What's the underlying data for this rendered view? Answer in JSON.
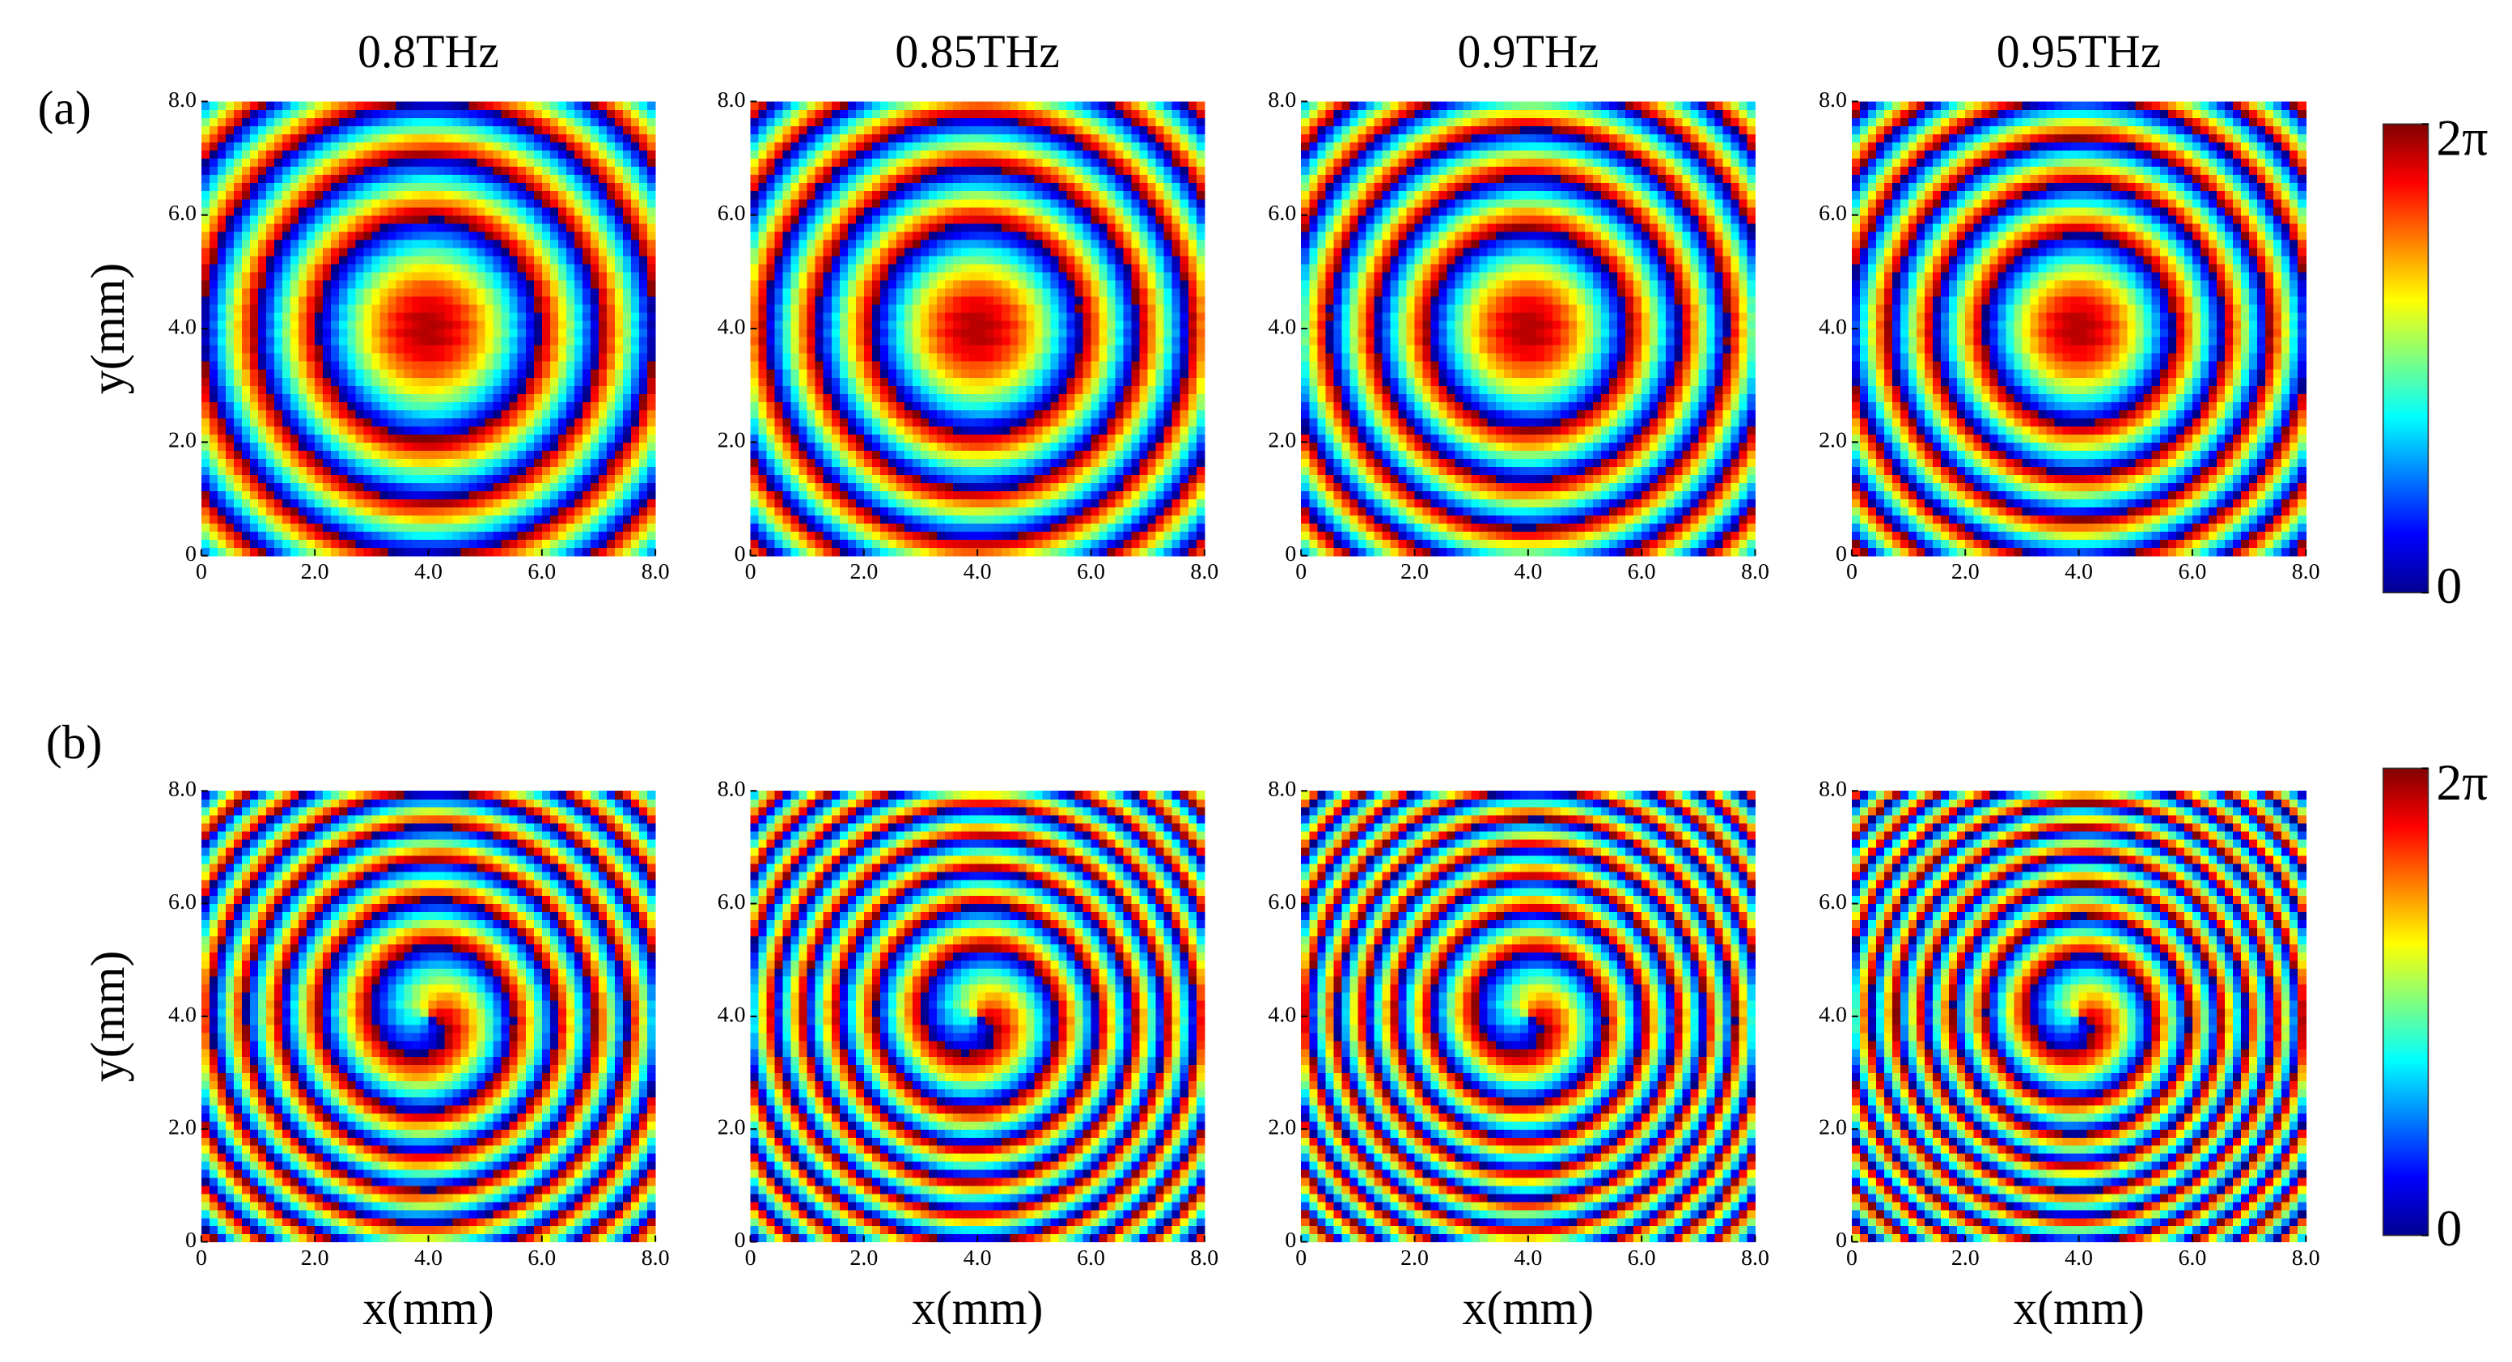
{
  "panel_labels": [
    "(a)",
    "(b)"
  ],
  "colorbars": [
    {
      "lim": [
        0,
        6.283
      ],
      "ticks": [
        {
          "value": 0,
          "label": "0"
        },
        {
          "value": 6.283,
          "label": "2π"
        }
      ]
    },
    {
      "lim": [
        0,
        6.283
      ],
      "ticks": [
        {
          "value": 0,
          "label": "0"
        },
        {
          "value": 6.283,
          "label": "2π"
        }
      ]
    }
  ],
  "chart_data": [
    {
      "type": "heatmap",
      "title": "0.8THz",
      "ylabel": "y(mm)",
      "xlim": [
        0,
        8
      ],
      "ylim": [
        0,
        8
      ],
      "xticks": [
        {
          "value": 0,
          "label": "0"
        },
        {
          "value": 2,
          "label": "2.0"
        },
        {
          "value": 4,
          "label": "4.0"
        },
        {
          "value": 6,
          "label": "6.0"
        },
        {
          "value": 8,
          "label": "8.0"
        }
      ],
      "yticks": [
        {
          "value": 0,
          "label": "0"
        },
        {
          "value": 2,
          "label": "2.0"
        },
        {
          "value": 4,
          "label": "4.0"
        },
        {
          "value": 6,
          "label": "6.0"
        },
        {
          "value": 8,
          "label": "8.0"
        }
      ]
    },
    {
      "type": "heatmap",
      "title": "0.85THz",
      "xlim": [
        0,
        8
      ],
      "ylim": [
        0,
        8
      ],
      "xticks": [
        {
          "value": 0,
          "label": "0"
        },
        {
          "value": 2,
          "label": "2.0"
        },
        {
          "value": 4,
          "label": "4.0"
        },
        {
          "value": 6,
          "label": "6.0"
        },
        {
          "value": 8,
          "label": "8.0"
        }
      ],
      "yticks": [
        {
          "value": 0,
          "label": "0"
        },
        {
          "value": 2,
          "label": "2.0"
        },
        {
          "value": 4,
          "label": "4.0"
        },
        {
          "value": 6,
          "label": "6.0"
        },
        {
          "value": 8,
          "label": "8.0"
        }
      ]
    },
    {
      "type": "heatmap",
      "title": "0.9THz",
      "xlim": [
        0,
        8
      ],
      "ylim": [
        0,
        8
      ],
      "xticks": [
        {
          "value": 0,
          "label": "0"
        },
        {
          "value": 2,
          "label": "2.0"
        },
        {
          "value": 4,
          "label": "4.0"
        },
        {
          "value": 6,
          "label": "6.0"
        },
        {
          "value": 8,
          "label": "8.0"
        }
      ],
      "yticks": [
        {
          "value": 0,
          "label": "0"
        },
        {
          "value": 2,
          "label": "2.0"
        },
        {
          "value": 4,
          "label": "4.0"
        },
        {
          "value": 6,
          "label": "6.0"
        },
        {
          "value": 8,
          "label": "8.0"
        }
      ]
    },
    {
      "type": "heatmap",
      "title": "0.95THz",
      "xlim": [
        0,
        8
      ],
      "ylim": [
        0,
        8
      ],
      "xticks": [
        {
          "value": 0,
          "label": "0"
        },
        {
          "value": 2,
          "label": "2.0"
        },
        {
          "value": 4,
          "label": "4.0"
        },
        {
          "value": 6,
          "label": "6.0"
        },
        {
          "value": 8,
          "label": "8.0"
        }
      ],
      "yticks": [
        {
          "value": 0,
          "label": "0"
        },
        {
          "value": 2,
          "label": "2.0"
        },
        {
          "value": 4,
          "label": "4.0"
        },
        {
          "value": 6,
          "label": "6.0"
        },
        {
          "value": 8,
          "label": "8.0"
        }
      ]
    },
    {
      "type": "heatmap",
      "ylabel": "y(mm)",
      "xlabel": "x(mm)",
      "xlim": [
        0,
        8
      ],
      "ylim": [
        0,
        8
      ],
      "xticks": [
        {
          "value": 0,
          "label": "0"
        },
        {
          "value": 2,
          "label": "2.0"
        },
        {
          "value": 4,
          "label": "4.0"
        },
        {
          "value": 6,
          "label": "6.0"
        },
        {
          "value": 8,
          "label": "8.0"
        }
      ],
      "yticks": [
        {
          "value": 0,
          "label": "0"
        },
        {
          "value": 2,
          "label": "2.0"
        },
        {
          "value": 4,
          "label": "4.0"
        },
        {
          "value": 6,
          "label": "6.0"
        },
        {
          "value": 8,
          "label": "8.0"
        }
      ]
    },
    {
      "type": "heatmap",
      "xlabel": "x(mm)",
      "xlim": [
        0,
        8
      ],
      "ylim": [
        0,
        8
      ],
      "xticks": [
        {
          "value": 0,
          "label": "0"
        },
        {
          "value": 2,
          "label": "2.0"
        },
        {
          "value": 4,
          "label": "4.0"
        },
        {
          "value": 6,
          "label": "6.0"
        },
        {
          "value": 8,
          "label": "8.0"
        }
      ],
      "yticks": [
        {
          "value": 0,
          "label": "0"
        },
        {
          "value": 2,
          "label": "2.0"
        },
        {
          "value": 4,
          "label": "4.0"
        },
        {
          "value": 6,
          "label": "6.0"
        },
        {
          "value": 8,
          "label": "8.0"
        }
      ]
    },
    {
      "type": "heatmap",
      "xlabel": "x(mm)",
      "xlim": [
        0,
        8
      ],
      "ylim": [
        0,
        8
      ],
      "xticks": [
        {
          "value": 0,
          "label": "0"
        },
        {
          "value": 2,
          "label": "2.0"
        },
        {
          "value": 4,
          "label": "4.0"
        },
        {
          "value": 6,
          "label": "6.0"
        },
        {
          "value": 8,
          "label": "8.0"
        }
      ],
      "yticks": [
        {
          "value": 0,
          "label": "0"
        },
        {
          "value": 2,
          "label": "2.0"
        },
        {
          "value": 4,
          "label": "4.0"
        },
        {
          "value": 6,
          "label": "6.0"
        },
        {
          "value": 8,
          "label": "8.0"
        }
      ]
    },
    {
      "type": "heatmap",
      "xlabel": "x(mm)",
      "xlim": [
        0,
        8
      ],
      "ylim": [
        0,
        8
      ],
      "xticks": [
        {
          "value": 0,
          "label": "0"
        },
        {
          "value": 2,
          "label": "2.0"
        },
        {
          "value": 4,
          "label": "4.0"
        },
        {
          "value": 6,
          "label": "6.0"
        },
        {
          "value": 8,
          "label": "8.0"
        }
      ],
      "yticks": [
        {
          "value": 0,
          "label": "0"
        },
        {
          "value": 2,
          "label": "2.0"
        },
        {
          "value": 4,
          "label": "4.0"
        },
        {
          "value": 6,
          "label": "6.0"
        },
        {
          "value": 8,
          "label": "8.0"
        }
      ]
    }
  ]
}
